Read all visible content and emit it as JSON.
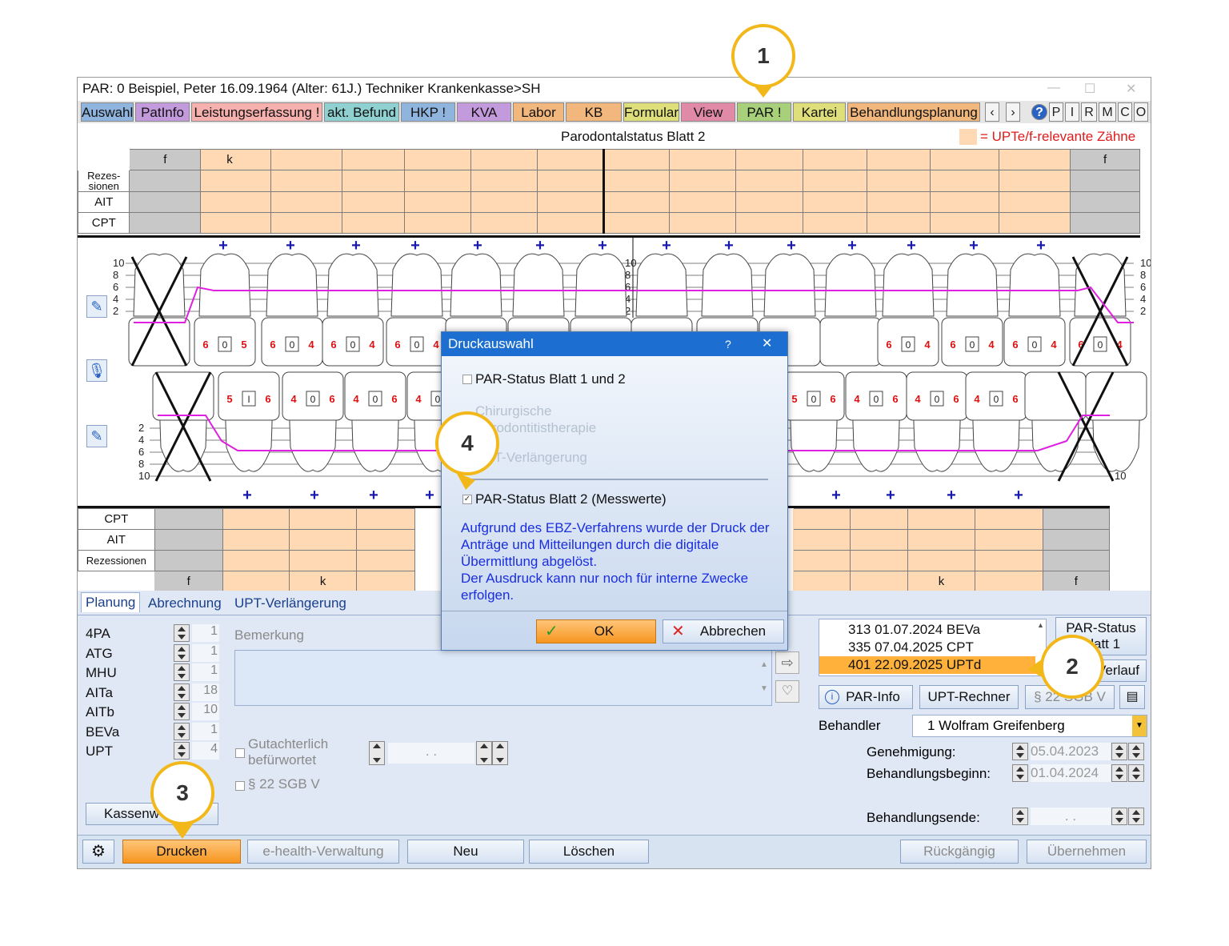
{
  "window": {
    "title": "PAR: 0  Beispiel, Peter  16.09.1964 (Alter: 61J.)  Techniker Krankenkasse>SH"
  },
  "menu": {
    "tabs": [
      {
        "label": "Auswahl",
        "color": "#8fb4dd"
      },
      {
        "label": "PatInfo",
        "color": "#c39bdc"
      },
      {
        "label": "Leistungserfassung !",
        "color": "#f6b0ad"
      },
      {
        "label": "akt. Befund",
        "color": "#8fd0d0"
      },
      {
        "label": "HKP !",
        "color": "#8fb4dd"
      },
      {
        "label": "KVA",
        "color": "#c39bdc"
      },
      {
        "label": "Labor",
        "color": "#f1b77d"
      },
      {
        "label": "KB",
        "color": "#f1b77d"
      },
      {
        "label": "Formular",
        "color": "#dede7a"
      },
      {
        "label": "View",
        "color": "#e08aa8"
      },
      {
        "label": "PAR !",
        "color": "#a8d07a"
      },
      {
        "label": "Kartei",
        "color": "#dede7a"
      },
      {
        "label": "Behandlungsplanung",
        "color": "#f1b77d"
      }
    ],
    "nav_prev": "‹",
    "nav_next": "›",
    "help": "?",
    "letters": [
      "P",
      "I",
      "R",
      "M",
      "C",
      "O"
    ]
  },
  "sheet": {
    "title": "Parodontalstatus Blatt 2",
    "legend": "= UPTe/f-relevante Zähne",
    "upper_header": {
      "left": "f",
      "second": "k",
      "right": "f"
    },
    "upper_rows": [
      "Rezes-\nsionen",
      "AIT",
      "CPT"
    ],
    "lower_rows": [
      "CPT",
      "AIT",
      "Rezessionen"
    ],
    "lower_footer": {
      "left": "f",
      "k1": "k",
      "k2": "k",
      "right": "f"
    },
    "scale_upper": [
      "10",
      "8",
      "6",
      "4",
      "2"
    ],
    "scale_lower": [
      "2",
      "4",
      "6",
      "8",
      "10"
    ],
    "upper_teeth": [
      {
        "left": "6",
        "mid": "0",
        "right": "5"
      },
      {
        "left": "6",
        "mid": "0",
        "right": "4"
      },
      {
        "left": "6",
        "mid": "0",
        "right": "4"
      },
      {
        "left": "6",
        "mid": "0",
        "right": "4"
      },
      {
        "left": "4",
        "mid": "",
        "right": ""
      },
      {
        "left": "6",
        "mid": "0",
        "right": "4"
      },
      {
        "left": "6",
        "mid": "0",
        "right": "4"
      },
      {
        "left": "6",
        "mid": "0",
        "right": "4"
      },
      {
        "left": "6",
        "mid": "0",
        "right": "4"
      }
    ],
    "lower_teeth": [
      {
        "left": "5",
        "mid": "I",
        "right": "6"
      },
      {
        "left": "4",
        "mid": "0",
        "right": "6"
      },
      {
        "left": "4",
        "mid": "0",
        "right": "6"
      },
      {
        "left": "4",
        "mid": "0",
        "right": ""
      },
      {
        "left": "",
        "mid": "",
        "right": "6"
      },
      {
        "left": "5",
        "mid": "0",
        "right": "6"
      },
      {
        "left": "4",
        "mid": "0",
        "right": "6"
      },
      {
        "left": "4",
        "mid": "0",
        "right": "6"
      },
      {
        "left": "4",
        "mid": "0",
        "right": "6"
      }
    ]
  },
  "lower_panel": {
    "tabs": [
      "Planung",
      "Abrechnung",
      "UPT-Verlängerung"
    ],
    "counters": [
      {
        "label": "4PA",
        "value": "1"
      },
      {
        "label": "ATG",
        "value": "1"
      },
      {
        "label": "MHU",
        "value": "1"
      },
      {
        "label": "AITa",
        "value": "18"
      },
      {
        "label": "AITb",
        "value": "10"
      },
      {
        "label": "BEVa",
        "value": "1"
      },
      {
        "label": "UPT",
        "value": "4"
      }
    ],
    "remark_label": "Bemerkung",
    "gutachterlich": "Gutachterlich\nbefürwortet",
    "sgb": "§ 22 SGB V",
    "date_placeholder": ".   .",
    "kassen_button": "Kassenw",
    "list": [
      {
        "text": "313 01.07.2024  BEVa",
        "selected": false
      },
      {
        "text": "335 07.04.2025  CPT",
        "selected": false
      },
      {
        "text": "401 22.09.2025  UPTd",
        "selected": true
      }
    ],
    "par_status_button": "PAR-Status\nBlatt 1",
    "verlauf_button": "Verlauf",
    "par_info": "PAR-Info",
    "upt_rechner": "UPT-Rechner",
    "sgb_button": "§ 22 SGB V",
    "behandler_label": "Behandler",
    "behandler_value": "1 Wolfram Greifenberg",
    "genehmigung_label": "Genehmigung:",
    "genehmigung_value": "05.04.2023",
    "beginn_label": "Behandlungsbeginn:",
    "beginn_value": "01.04.2024",
    "ende_label": "Behandlungsende:",
    "ende_value": ".   ."
  },
  "bottom_bar": {
    "drucken": "Drucken",
    "ehealth": "e-health-Verwaltung",
    "neu": "Neu",
    "loeschen": "Löschen",
    "rueckgaengig": "Rückgängig",
    "uebernehmen": "Übernehmen"
  },
  "dialog": {
    "title": "Druckauswahl",
    "help": "?",
    "close": "✕",
    "opt1": "PAR-Status Blatt 1 und 2",
    "opt2": "Chirurgische\nParodontitistherapie",
    "opt3": "UPT-Verlängerung",
    "opt4": "PAR-Status Blatt 2 (Messwerte)",
    "message": "Aufgrund des EBZ-Verfahrens wurde der Druck der Anträge und Mitteilungen durch die digitale Übermittlung abgelöst.\nDer Ausdruck kann nur noch für interne Zwecke erfolgen.",
    "ok": "OK",
    "cancel": "Abbrechen"
  },
  "callouts": [
    "1",
    "2",
    "3",
    "4"
  ],
  "colors": {
    "accent_orange": "#f7951e",
    "callout": "#f2b81a",
    "dialog_title": "#1c6fd0",
    "highlight": "#ffb13b",
    "pocket_line": "#e020e0"
  }
}
